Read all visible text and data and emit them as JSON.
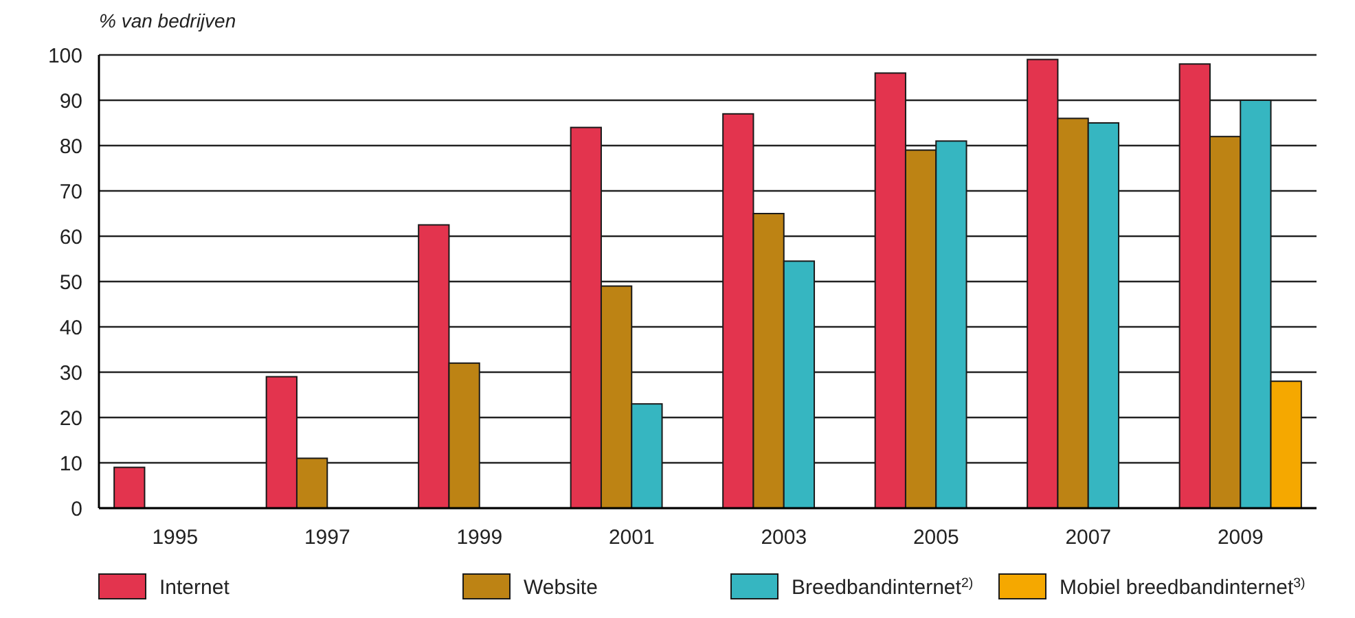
{
  "chart_data": {
    "type": "bar",
    "ylabel": "% van bedrijven",
    "categories": [
      "1995",
      "1997",
      "1999",
      "2001",
      "2003",
      "2005",
      "2007",
      "2009"
    ],
    "series": [
      {
        "name": "Internet",
        "color": "#e3344e",
        "values": [
          9,
          29,
          62.5,
          84,
          87,
          96,
          99,
          98
        ]
      },
      {
        "name": "Website",
        "color": "#bd8314",
        "values": [
          null,
          11,
          32,
          49,
          65,
          79,
          86,
          82
        ]
      },
      {
        "name": "Breedbandinternet$^{2)}$",
        "color": "#36b6c1",
        "values": [
          null,
          null,
          null,
          23,
          54.5,
          81,
          85,
          90
        ]
      },
      {
        "name": "Mobiel breedbandinternet$^{3)}$",
        "color": "#f5a800",
        "values": [
          null,
          null,
          null,
          null,
          null,
          null,
          null,
          28
        ]
      }
    ],
    "ylim": [
      0,
      100
    ],
    "yticks": [
      0,
      10,
      20,
      30,
      40,
      50,
      60,
      70,
      80,
      90,
      100
    ],
    "grid": "y",
    "legend": "bottom"
  }
}
